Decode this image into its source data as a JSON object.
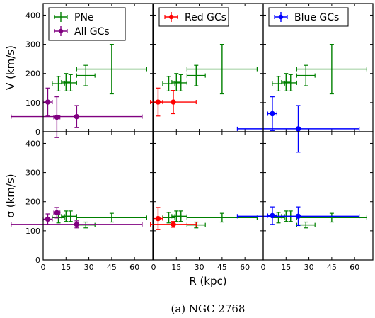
{
  "figure": {
    "caption": "(a) NGC 2768",
    "xlabel": "R (kpc)",
    "colors": {
      "pne": "#008000",
      "all_gcs": "#800080",
      "red_gcs": "#ff0000",
      "blue_gcs": "#0000ff"
    }
  },
  "chart_data": [
    {
      "type": "scatter",
      "panel": "V - PNe and All GCs",
      "ylabel": "V (km/s)",
      "xlim": [
        0,
        72
      ],
      "ylim": [
        0,
        440
      ],
      "xticks": [
        "0",
        "15",
        "30",
        "45",
        "60"
      ],
      "yticks": [
        "0",
        "100",
        "200",
        "300",
        "400"
      ],
      "legend": "top-left",
      "series": [
        {
          "name": "PNe",
          "color": "#008000",
          "points": [
            {
              "x": 10,
              "y": 165,
              "xerr": 4,
              "yerr": 25
            },
            {
              "x": 15,
              "y": 170,
              "xerr": 3,
              "yerr": 30
            },
            {
              "x": 18,
              "y": 168,
              "xerr": 4,
              "yerr": 28
            },
            {
              "x": 28,
              "y": 193,
              "xerr": 6,
              "yerr": 35
            },
            {
              "x": 45,
              "y": 215,
              "xerr": 23,
              "yerr": 85
            }
          ]
        },
        {
          "name": "All GCs",
          "color": "#800080",
          "points": [
            {
              "x": 3,
              "y": 102,
              "xerr": 3,
              "yerr": 48
            },
            {
              "x": 9,
              "y": 50,
              "xerr": 2,
              "yerr": 70
            },
            {
              "x": 22,
              "y": 52,
              "xerr": 43,
              "yerr": 38
            }
          ]
        }
      ]
    },
    {
      "type": "scatter",
      "panel": "V - PNe and Red GCs",
      "xlim": [
        0,
        72
      ],
      "ylim": [
        0,
        440
      ],
      "xticks": [
        "0",
        "15",
        "30",
        "45",
        "60"
      ],
      "legend": "top-left",
      "series": [
        {
          "name": "",
          "color": "#008000",
          "points": [
            {
              "x": 10,
              "y": 165,
              "xerr": 4,
              "yerr": 25
            },
            {
              "x": 15,
              "y": 170,
              "xerr": 3,
              "yerr": 30
            },
            {
              "x": 18,
              "y": 168,
              "xerr": 4,
              "yerr": 28
            },
            {
              "x": 28,
              "y": 193,
              "xerr": 6,
              "yerr": 35
            },
            {
              "x": 45,
              "y": 215,
              "xerr": 23,
              "yerr": 85
            }
          ]
        },
        {
          "name": "Red GCs",
          "color": "#ff0000",
          "points": [
            {
              "x": 3,
              "y": 102,
              "xerr": 3,
              "yerr": 48
            },
            {
              "x": 13,
              "y": 102,
              "xerr": 15,
              "yerr": 40
            }
          ]
        }
      ]
    },
    {
      "type": "scatter",
      "panel": "V - PNe and Blue GCs",
      "xlim": [
        0,
        72
      ],
      "ylim": [
        0,
        440
      ],
      "xticks": [
        "0",
        "15",
        "30",
        "45",
        "60"
      ],
      "legend": "top-left",
      "series": [
        {
          "name": "",
          "color": "#008000",
          "points": [
            {
              "x": 10,
              "y": 165,
              "xerr": 4,
              "yerr": 25
            },
            {
              "x": 15,
              "y": 170,
              "xerr": 3,
              "yerr": 30
            },
            {
              "x": 18,
              "y": 168,
              "xerr": 4,
              "yerr": 28
            },
            {
              "x": 28,
              "y": 193,
              "xerr": 6,
              "yerr": 35
            },
            {
              "x": 45,
              "y": 215,
              "xerr": 23,
              "yerr": 85
            }
          ]
        },
        {
          "name": "Blue GCs",
          "color": "#0000ff",
          "points": [
            {
              "x": 6,
              "y": 62,
              "xerr": 3,
              "yerr": 58
            },
            {
              "x": 23,
              "y": 10,
              "xerr": 40,
              "yerr": 80
            }
          ]
        }
      ]
    },
    {
      "type": "scatter",
      "panel": "sigma - PNe and All GCs",
      "ylabel": "σ (km/s)",
      "xlim": [
        0,
        72
      ],
      "ylim": [
        0,
        440
      ],
      "xticks": [
        "0",
        "15",
        "30",
        "45",
        "60"
      ],
      "yticks": [
        "0",
        "100",
        "200",
        "300",
        "400"
      ],
      "series": [
        {
          "name": "",
          "color": "#008000",
          "points": [
            {
              "x": 10,
              "y": 145,
              "xerr": 4,
              "yerr": 18
            },
            {
              "x": 15,
              "y": 150,
              "xerr": 3,
              "yerr": 18
            },
            {
              "x": 18,
              "y": 150,
              "xerr": 4,
              "yerr": 18
            },
            {
              "x": 28,
              "y": 120,
              "xerr": 6,
              "yerr": 10
            },
            {
              "x": 45,
              "y": 145,
              "xerr": 23,
              "yerr": 15
            }
          ]
        },
        {
          "name": "",
          "color": "#800080",
          "points": [
            {
              "x": 3,
              "y": 140,
              "xerr": 3,
              "yerr": 18
            },
            {
              "x": 9,
              "y": 162,
              "xerr": 2,
              "yerr": 18
            },
            {
              "x": 22,
              "y": 122,
              "xerr": 43,
              "yerr": 12
            }
          ]
        }
      ]
    },
    {
      "type": "scatter",
      "panel": "sigma - PNe and Red GCs",
      "xlim": [
        0,
        72
      ],
      "ylim": [
        0,
        440
      ],
      "xticks": [
        "0",
        "15",
        "30",
        "45",
        "60"
      ],
      "series": [
        {
          "name": "",
          "color": "#008000",
          "points": [
            {
              "x": 10,
              "y": 145,
              "xerr": 4,
              "yerr": 18
            },
            {
              "x": 15,
              "y": 150,
              "xerr": 3,
              "yerr": 18
            },
            {
              "x": 18,
              "y": 150,
              "xerr": 4,
              "yerr": 18
            },
            {
              "x": 28,
              "y": 120,
              "xerr": 6,
              "yerr": 10
            },
            {
              "x": 45,
              "y": 145,
              "xerr": 23,
              "yerr": 15
            }
          ]
        },
        {
          "name": "",
          "color": "#ff0000",
          "points": [
            {
              "x": 3,
              "y": 142,
              "xerr": 3,
              "yerr": 38
            },
            {
              "x": 13,
              "y": 122,
              "xerr": 15,
              "yerr": 10
            }
          ]
        }
      ]
    },
    {
      "type": "scatter",
      "panel": "sigma - PNe and Blue GCs",
      "xlim": [
        0,
        72
      ],
      "ylim": [
        0,
        440
      ],
      "xticks": [
        "0",
        "15",
        "30",
        "45",
        "60"
      ],
      "series": [
        {
          "name": "",
          "color": "#008000",
          "points": [
            {
              "x": 10,
              "y": 145,
              "xerr": 4,
              "yerr": 18
            },
            {
              "x": 15,
              "y": 150,
              "xerr": 3,
              "yerr": 18
            },
            {
              "x": 18,
              "y": 150,
              "xerr": 4,
              "yerr": 18
            },
            {
              "x": 28,
              "y": 120,
              "xerr": 6,
              "yerr": 10
            },
            {
              "x": 45,
              "y": 145,
              "xerr": 23,
              "yerr": 15
            }
          ]
        },
        {
          "name": "",
          "color": "#0000ff",
          "points": [
            {
              "x": 6,
              "y": 152,
              "xerr": 3,
              "yerr": 30
            },
            {
              "x": 23,
              "y": 150,
              "xerr": 40,
              "yerr": 32
            }
          ]
        }
      ]
    }
  ]
}
